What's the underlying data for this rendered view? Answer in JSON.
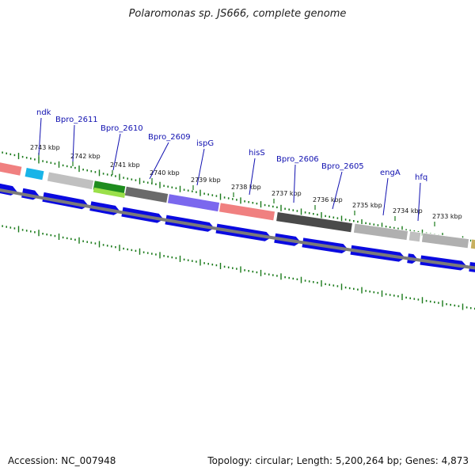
{
  "title": "Polaromonas sp. JS666, complete genome",
  "footer": {
    "accession": "Accession: NC_007948",
    "topology": "Topology: circular; Length: 5,200,264 bp; Genes: 4,873"
  },
  "colors": {
    "ruler": "#1a7a1a",
    "backbone": "#7a7a7a",
    "cds_arrow": "#0a0ae0",
    "gene_label": "#1010b0",
    "kbp_label": "#111111"
  },
  "kbp_ticks": [
    {
      "label": "2743 kbp"
    },
    {
      "label": "2742 kbp"
    },
    {
      "label": "2741 kbp"
    },
    {
      "label": "2740 kbp"
    },
    {
      "label": "2739 kbp"
    },
    {
      "label": "2738 kbp"
    },
    {
      "label": "2737 kbp"
    },
    {
      "label": "2736 kbp"
    },
    {
      "label": "2735 kbp"
    },
    {
      "label": "2734 kbp"
    },
    {
      "label": "2733 kbp"
    }
  ],
  "gene_labels": [
    {
      "name": "ndk"
    },
    {
      "name": "Bpro_2611"
    },
    {
      "name": "Bpro_2610"
    },
    {
      "name": "Bpro_2609"
    },
    {
      "name": "ispG"
    },
    {
      "name": "hisS"
    },
    {
      "name": "Bpro_2606"
    },
    {
      "name": "Bpro_2605"
    },
    {
      "name": "engA"
    },
    {
      "name": "hfq"
    }
  ],
  "cog_segments": [
    {
      "color": "#f08080"
    },
    {
      "color": "#18b4e8"
    },
    {
      "color": "#c0c0c0"
    },
    {
      "color": "#1e8c1e"
    },
    {
      "color": "#6a6a6a"
    },
    {
      "color": "#7b68ee"
    },
    {
      "color": "#f08080"
    },
    {
      "color": "#4a4a4a"
    },
    {
      "color": "#b0b0b0"
    },
    {
      "color": "#c0c0c0"
    },
    {
      "color": "#b0b0b0"
    },
    {
      "color": "#c8b060"
    }
  ]
}
